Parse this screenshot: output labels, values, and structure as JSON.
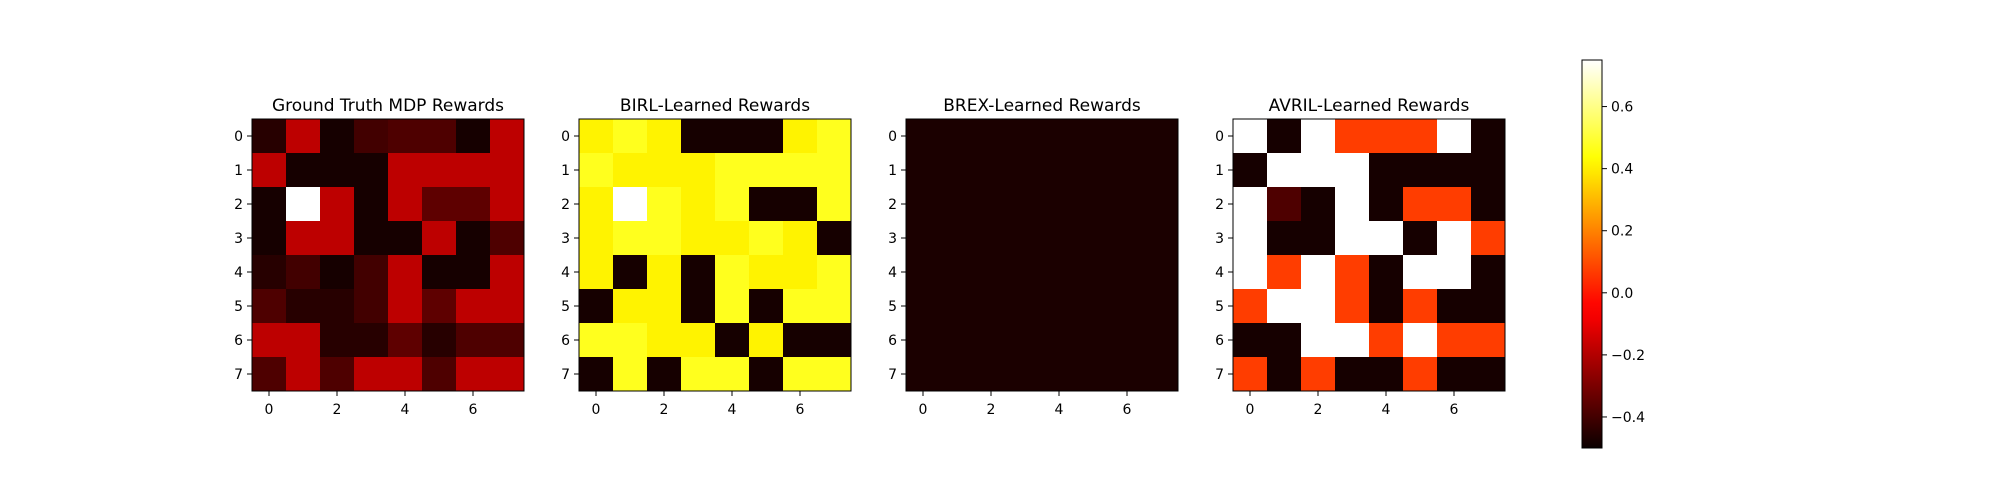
{
  "colormap": "hot",
  "chart_data": {
    "type": "heatmap",
    "colorbar": {
      "range": [
        -0.5,
        0.75
      ],
      "ticks": [
        -0.4,
        -0.2,
        0.0,
        0.2,
        0.4,
        0.6
      ],
      "tick_labels": [
        "−0.4",
        "−0.2",
        "0.0",
        "0.2",
        "0.4",
        "0.6"
      ]
    },
    "panels": [
      {
        "title": "Ground Truth MDP Rewards",
        "x_ticks": [
          0,
          2,
          4,
          6
        ],
        "y_ticks": [
          0,
          1,
          2,
          3,
          4,
          5,
          6,
          7
        ],
        "grid": [
          [
            -0.45,
            -0.18,
            -0.48,
            -0.4,
            -0.38,
            -0.38,
            -0.48,
            -0.18
          ],
          [
            -0.18,
            -0.48,
            -0.48,
            -0.48,
            -0.18,
            -0.18,
            -0.18,
            -0.18
          ],
          [
            -0.48,
            0.75,
            -0.18,
            -0.48,
            -0.18,
            -0.35,
            -0.35,
            -0.18
          ],
          [
            -0.48,
            -0.18,
            -0.18,
            -0.48,
            -0.48,
            -0.18,
            -0.48,
            -0.38
          ],
          [
            -0.45,
            -0.4,
            -0.48,
            -0.4,
            -0.18,
            -0.48,
            -0.48,
            -0.18
          ],
          [
            -0.38,
            -0.45,
            -0.45,
            -0.4,
            -0.18,
            -0.35,
            -0.18,
            -0.18
          ],
          [
            -0.18,
            -0.18,
            -0.45,
            -0.45,
            -0.35,
            -0.45,
            -0.38,
            -0.38
          ],
          [
            -0.38,
            -0.18,
            -0.38,
            -0.18,
            -0.18,
            -0.38,
            -0.18,
            -0.18
          ]
        ]
      },
      {
        "title": "BIRL-Learned Rewards",
        "x_ticks": [
          0,
          2,
          4,
          6
        ],
        "y_ticks": [
          0,
          1,
          2,
          3,
          4,
          5,
          6,
          7
        ],
        "grid": [
          [
            0.41,
            0.47,
            0.41,
            -0.48,
            -0.48,
            -0.48,
            0.41,
            0.47
          ],
          [
            0.47,
            0.41,
            0.41,
            0.41,
            0.47,
            0.47,
            0.47,
            0.47
          ],
          [
            0.41,
            0.75,
            0.47,
            0.41,
            0.47,
            -0.48,
            -0.48,
            0.47
          ],
          [
            0.41,
            0.47,
            0.47,
            0.41,
            0.41,
            0.47,
            0.41,
            -0.48
          ],
          [
            0.41,
            -0.48,
            0.41,
            -0.48,
            0.47,
            0.41,
            0.41,
            0.47
          ],
          [
            -0.48,
            0.41,
            0.41,
            -0.48,
            0.47,
            -0.48,
            0.47,
            0.47
          ],
          [
            0.47,
            0.47,
            0.41,
            0.41,
            -0.48,
            0.41,
            -0.48,
            -0.48
          ],
          [
            -0.48,
            0.47,
            -0.48,
            0.47,
            0.47,
            -0.48,
            0.47,
            0.47
          ]
        ]
      },
      {
        "title": "BREX-Learned Rewards",
        "x_ticks": [
          0,
          2,
          4,
          6
        ],
        "y_ticks": [
          0,
          1,
          2,
          3,
          4,
          5,
          6,
          7
        ],
        "grid": [
          [
            -0.47,
            -0.47,
            -0.47,
            -0.47,
            -0.47,
            -0.47,
            -0.47,
            -0.47
          ],
          [
            -0.47,
            -0.47,
            -0.47,
            -0.47,
            -0.47,
            -0.47,
            -0.47,
            -0.47
          ],
          [
            -0.47,
            -0.47,
            -0.47,
            -0.47,
            -0.47,
            -0.47,
            -0.47,
            -0.47
          ],
          [
            -0.47,
            -0.47,
            -0.47,
            -0.47,
            -0.47,
            -0.47,
            -0.47,
            -0.47
          ],
          [
            -0.47,
            -0.47,
            -0.47,
            -0.47,
            -0.47,
            -0.47,
            -0.47,
            -0.47
          ],
          [
            -0.47,
            -0.47,
            -0.47,
            -0.47,
            -0.47,
            -0.47,
            -0.47,
            -0.47
          ],
          [
            -0.47,
            -0.47,
            -0.47,
            -0.47,
            -0.47,
            -0.47,
            -0.47,
            -0.47
          ],
          [
            -0.47,
            -0.47,
            -0.47,
            -0.47,
            -0.47,
            -0.47,
            -0.47,
            -0.47
          ]
        ]
      },
      {
        "title": "AVRIL-Learned Rewards",
        "x_ticks": [
          0,
          2,
          4,
          6
        ],
        "y_ticks": [
          0,
          1,
          2,
          3,
          4,
          5,
          6,
          7
        ],
        "grid": [
          [
            0.75,
            -0.48,
            0.75,
            0.07,
            0.07,
            0.07,
            0.75,
            -0.48
          ],
          [
            -0.48,
            0.75,
            0.75,
            0.75,
            -0.48,
            -0.48,
            -0.48,
            -0.48
          ],
          [
            0.75,
            -0.38,
            -0.48,
            0.75,
            -0.48,
            0.07,
            0.07,
            -0.48
          ],
          [
            0.75,
            -0.48,
            -0.48,
            0.75,
            0.75,
            -0.48,
            0.75,
            0.07
          ],
          [
            0.75,
            0.07,
            0.75,
            0.07,
            -0.48,
            0.75,
            0.75,
            -0.48
          ],
          [
            0.07,
            0.75,
            0.75,
            0.07,
            -0.48,
            0.07,
            -0.48,
            -0.48
          ],
          [
            -0.48,
            -0.48,
            0.75,
            0.75,
            0.07,
            0.75,
            0.07,
            0.07
          ],
          [
            0.07,
            -0.48,
            0.07,
            -0.48,
            -0.48,
            0.07,
            -0.48,
            -0.48
          ]
        ]
      }
    ]
  }
}
